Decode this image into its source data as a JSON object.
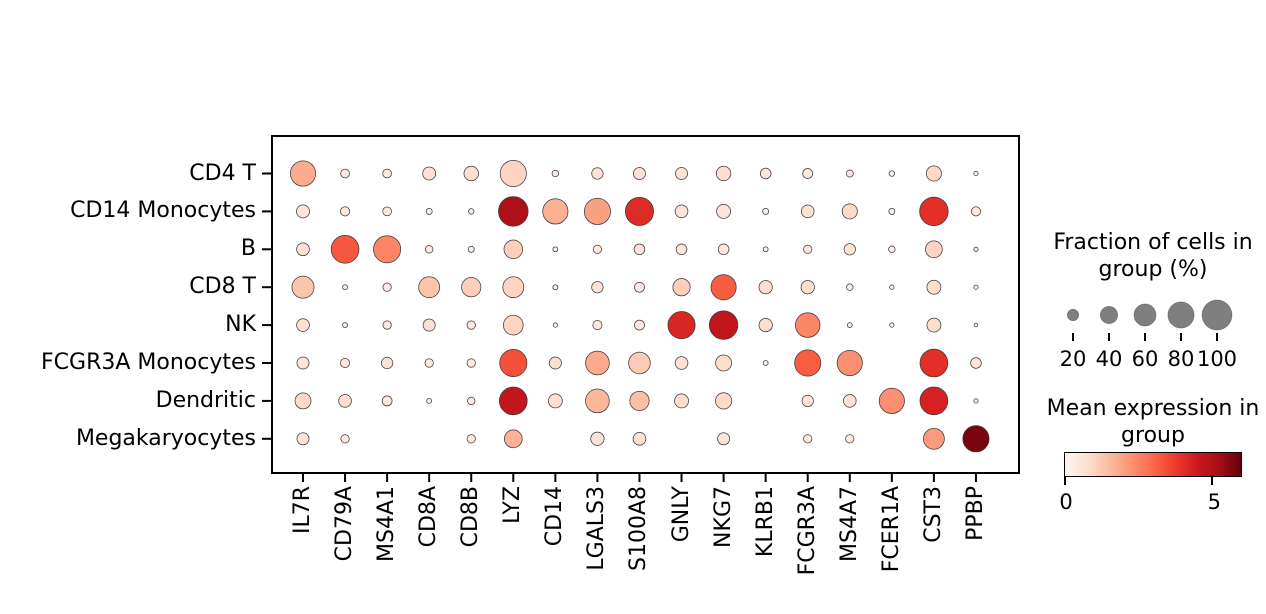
{
  "chart_data": {
    "type": "heatmap",
    "subtype": "dotplot",
    "title": "",
    "rows": [
      "CD4 T",
      "CD14 Monocytes",
      "B",
      "CD8 T",
      "NK",
      "FCGR3A Monocytes",
      "Dendritic",
      "Megakaryocytes"
    ],
    "columns": [
      "IL7R",
      "CD79A",
      "MS4A1",
      "CD8A",
      "CD8B",
      "LYZ",
      "CD14",
      "LGALS3",
      "S100A8",
      "GNLY",
      "NKG7",
      "KLRB1",
      "FCGR3A",
      "MS4A7",
      "FCER1A",
      "CST3",
      "PPBP"
    ],
    "fraction_of_cells_pct": [
      [
        75,
        13,
        13,
        25,
        30,
        80,
        8,
        20,
        22,
        22,
        30,
        18,
        16,
        9,
        6,
        32,
        4
      ],
      [
        25,
        14,
        13,
        7,
        6,
        98,
        75,
        80,
        90,
        24,
        28,
        7,
        24,
        32,
        7,
        92,
        14
      ],
      [
        24,
        88,
        85,
        10,
        7,
        45,
        5,
        12,
        18,
        18,
        18,
        5,
        12,
        20,
        8,
        38,
        4
      ],
      [
        60,
        5,
        12,
        55,
        48,
        55,
        5,
        20,
        16,
        40,
        75,
        26,
        26,
        8,
        4,
        28,
        4
      ],
      [
        24,
        5,
        12,
        22,
        12,
        50,
        4,
        14,
        16,
        85,
        92,
        26,
        72,
        5,
        4,
        28,
        3
      ],
      [
        22,
        14,
        20,
        12,
        12,
        85,
        22,
        68,
        58,
        24,
        35,
        5,
        80,
        75,
        0,
        88,
        18
      ],
      [
        35,
        24,
        16,
        5,
        10,
        88,
        28,
        68,
        48,
        28,
        36,
        0,
        20,
        24,
        75,
        88,
        4
      ],
      [
        22,
        12,
        0,
        0,
        12,
        42,
        0,
        26,
        24,
        0,
        22,
        0,
        12,
        12,
        0,
        55,
        80
      ]
    ],
    "mean_expression": [
      [
        1.8,
        0.5,
        0.5,
        0.7,
        0.8,
        1.0,
        0.4,
        0.6,
        0.7,
        0.6,
        0.8,
        0.6,
        0.5,
        0.4,
        0.3,
        0.9,
        0.2
      ],
      [
        0.6,
        0.5,
        0.4,
        0.3,
        0.3,
        5.1,
        1.7,
        2.0,
        4.1,
        0.6,
        0.6,
        0.3,
        0.7,
        0.9,
        0.3,
        4.0,
        0.5
      ],
      [
        0.7,
        3.3,
        2.5,
        0.4,
        0.3,
        1.1,
        0.3,
        0.5,
        0.6,
        0.5,
        0.5,
        0.3,
        0.4,
        0.6,
        0.4,
        1.0,
        0.2
      ],
      [
        1.3,
        0.3,
        0.4,
        1.3,
        1.1,
        1.0,
        0.3,
        0.6,
        0.5,
        1.1,
        3.2,
        0.8,
        0.8,
        0.3,
        0.2,
        0.8,
        0.2
      ],
      [
        0.7,
        0.3,
        0.4,
        0.7,
        0.4,
        1.0,
        0.2,
        0.5,
        0.5,
        4.2,
        4.7,
        0.8,
        2.5,
        0.3,
        0.2,
        0.8,
        0.2
      ],
      [
        0.6,
        0.5,
        0.6,
        0.4,
        0.4,
        3.4,
        0.8,
        1.8,
        1.2,
        0.7,
        0.8,
        0.3,
        3.2,
        2.3,
        0.0,
        4.0,
        0.6
      ],
      [
        0.9,
        0.7,
        0.5,
        0.3,
        0.4,
        4.7,
        0.8,
        1.6,
        1.4,
        0.8,
        0.9,
        0.0,
        0.6,
        0.7,
        2.3,
        4.3,
        0.2
      ],
      [
        0.6,
        0.4,
        0.0,
        0.0,
        0.4,
        1.7,
        0.0,
        0.7,
        0.7,
        0.0,
        0.6,
        0.0,
        0.4,
        0.4,
        0.0,
        2.1,
        5.8
      ]
    ],
    "color_scale": {
      "colormap": "Reds",
      "vmin": 0,
      "vmax": 6,
      "tick_values": [
        0,
        5
      ],
      "dot_edge_color": "#3b3b3b",
      "legend_dot_color": "#7f7f7f"
    },
    "layout": {
      "grid": false,
      "x_tick_rotation": 90,
      "legend_position": "right"
    }
  },
  "legend": {
    "size_title": "Fraction of cells in group (%)",
    "size_values": [
      "20",
      "40",
      "60",
      "80",
      "100"
    ],
    "color_title": "Mean expression in group",
    "color_tick_labels": [
      "0",
      "5"
    ]
  }
}
